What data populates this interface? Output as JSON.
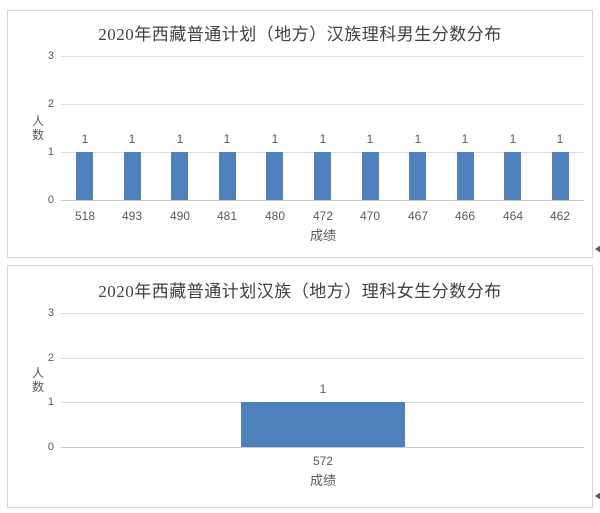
{
  "page": {
    "background": "#ffffff"
  },
  "icons": {
    "return_mark": "◄"
  },
  "chart_data": [
    {
      "type": "bar",
      "title": "2020年西藏普通计划（地方）汉族理科男生分数分布",
      "categories": [
        "518",
        "493",
        "490",
        "481",
        "480",
        "472",
        "470",
        "467",
        "466",
        "464",
        "462"
      ],
      "values": [
        1,
        1,
        1,
        1,
        1,
        1,
        1,
        1,
        1,
        1,
        1
      ],
      "data_labels": [
        "1",
        "1",
        "1",
        "1",
        "1",
        "1",
        "1",
        "1",
        "1",
        "1",
        "1"
      ],
      "xlabel": "成绩",
      "ylabel": "人数",
      "ylim": [
        0,
        3
      ],
      "yticks": [
        3,
        2,
        1,
        0
      ],
      "grid": true,
      "legend": false,
      "data_labels_shown": true,
      "bar_color": "#4f81bd",
      "gridline_color": "#d9d9d9",
      "axis_label_color": "#595959",
      "title_color": "#404040"
    },
    {
      "type": "bar",
      "title": "2020年西藏普通计划汉族（地方）理科女生分数分布",
      "categories": [
        "572"
      ],
      "values": [
        1
      ],
      "data_labels": [
        "1"
      ],
      "xlabel": "成绩",
      "ylabel": "人数",
      "ylim": [
        0,
        3
      ],
      "yticks": [
        3,
        2,
        1,
        0
      ],
      "grid": true,
      "legend": false,
      "data_labels_shown": true,
      "bar_color": "#4f81bd",
      "gridline_color": "#d9d9d9",
      "axis_label_color": "#595959",
      "title_color": "#404040"
    }
  ]
}
